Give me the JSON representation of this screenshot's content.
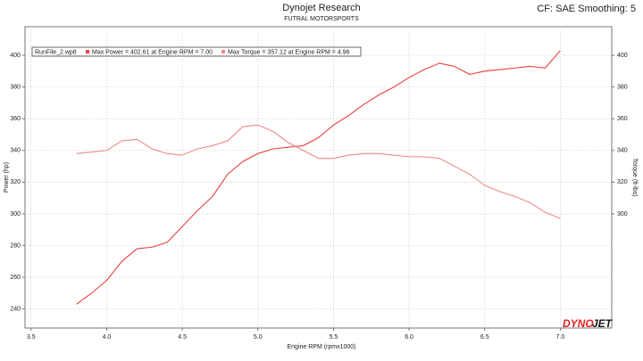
{
  "chart_data": {
    "type": "line",
    "title": "Dynojet Research",
    "subtitle": "FUTRAL MOTORSPORTS",
    "correction": "CF: SAE Smoothing: 5",
    "legend_title": "RunFile_2.wp8",
    "logo": [
      "DYNO",
      "JET"
    ],
    "xlabel": "Engine RPM (rpmx1000)",
    "ylabel": "Power (hp)",
    "y2label": "Torque (ft-lbs)",
    "x": [
      3.8,
      3.9,
      4.0,
      4.1,
      4.2,
      4.3,
      4.4,
      4.5,
      4.6,
      4.7,
      4.8,
      4.9,
      5.0,
      5.1,
      5.2,
      5.3,
      5.4,
      5.5,
      5.6,
      5.7,
      5.8,
      5.9,
      6.0,
      6.1,
      6.2,
      6.3,
      6.4,
      6.5,
      6.6,
      6.7,
      6.8,
      6.9,
      7.0
    ],
    "series": [
      {
        "name": "Max Power = 402.61 at Engine RPM = 7.00",
        "color": "#e8413c",
        "values": [
          243,
          250,
          258,
          270,
          278,
          279,
          282,
          292,
          302,
          311,
          325,
          333,
          338,
          341,
          342,
          343,
          348,
          356,
          362,
          369,
          375,
          380,
          386,
          391,
          395,
          393,
          388,
          390,
          391,
          392,
          393,
          392,
          403
        ]
      },
      {
        "name": "Max Torque = 357.12 at Engine RPM = 4.96",
        "color": "#f08a8a",
        "axis": "y2",
        "values": [
          338,
          339,
          340,
          346,
          347,
          341,
          338,
          337,
          341,
          343,
          346,
          355,
          356,
          352,
          345,
          340,
          335,
          335,
          337,
          338,
          338,
          337,
          336,
          336,
          335,
          330,
          325,
          318,
          314,
          311,
          307,
          301,
          297
        ]
      }
    ],
    "xlim": [
      3.46,
      7.34
    ],
    "xticks": [
      3.5,
      {
        "value": 4,
        "label": "4.0"
      },
      4.5,
      {
        "value": 5,
        "label": "5.0"
      },
      5.5,
      {
        "value": 6,
        "label": "6.0"
      },
      6.5,
      {
        "value": 7,
        "label": "7.0"
      }
    ],
    "ylim": [
      228,
      418
    ],
    "yticks": [
      240,
      260,
      280,
      300,
      320,
      340,
      360,
      380,
      400
    ],
    "y2lim": [
      228,
      418
    ],
    "y2ticks": [
      300,
      320,
      340,
      360,
      380,
      400
    ],
    "grid": true
  }
}
